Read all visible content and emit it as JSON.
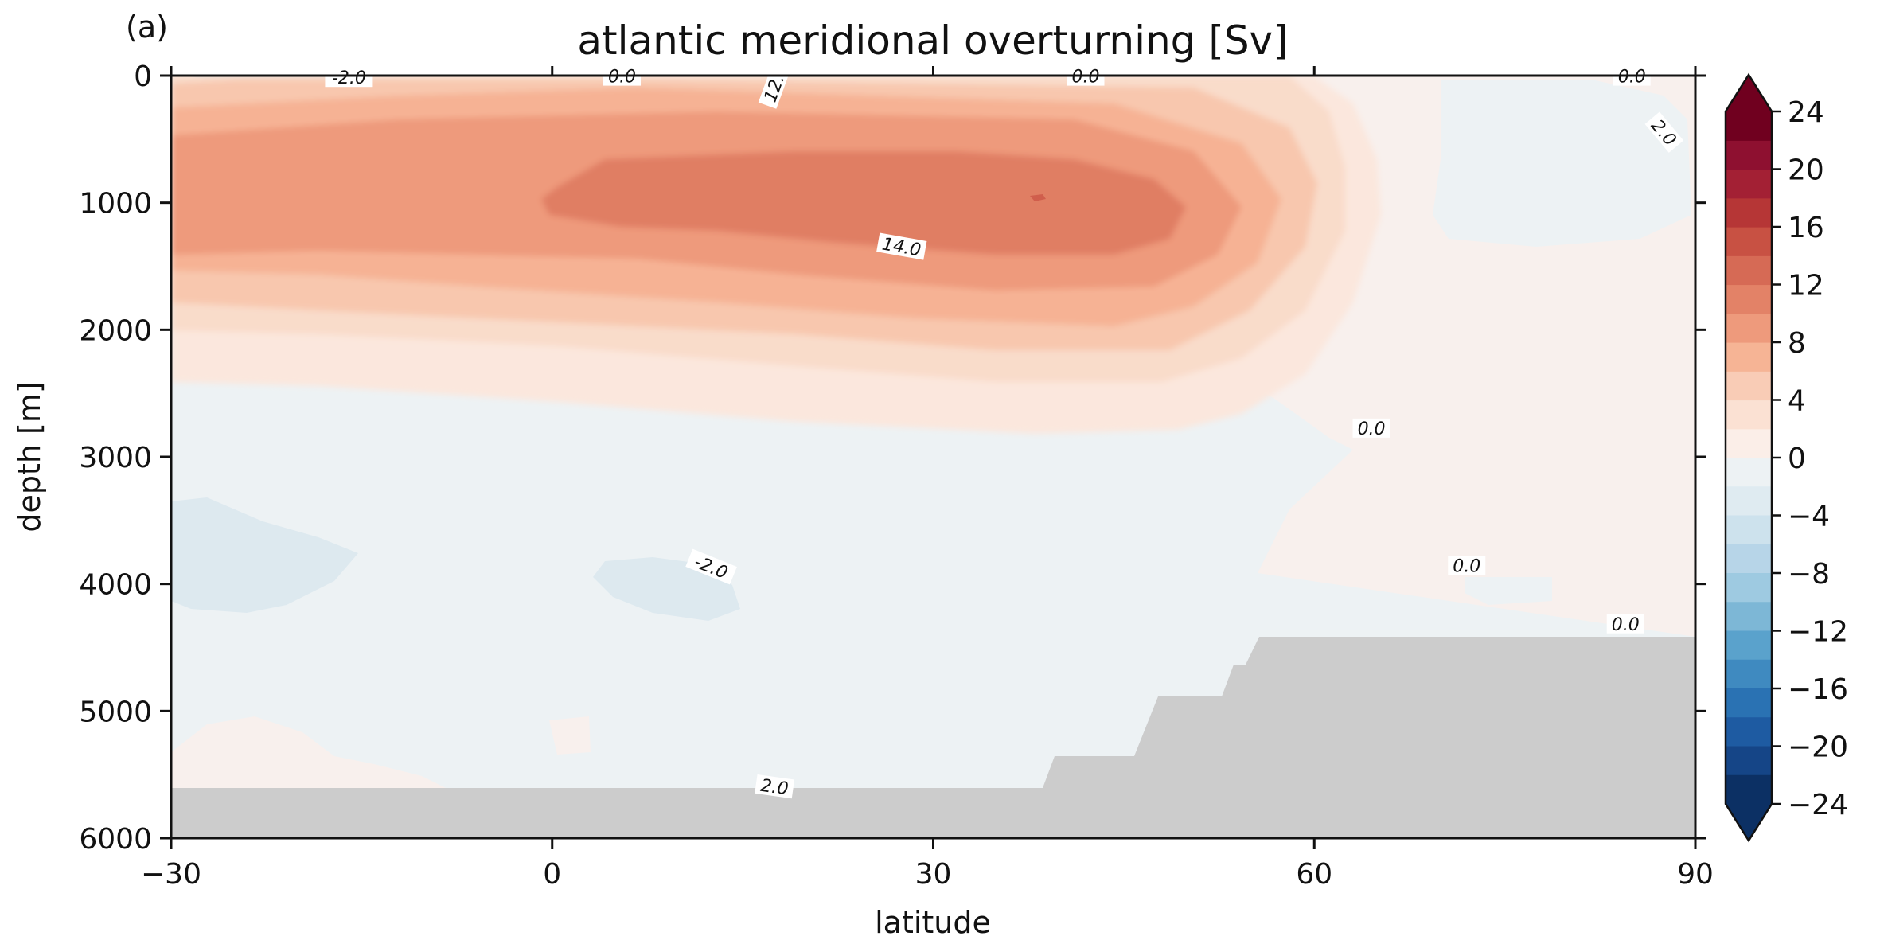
{
  "chart_data": {
    "type": "heatmap",
    "panel_label": "(a)",
    "title": "atlantic meridional overturning [Sv]",
    "xlabel": "latitude",
    "ylabel": "depth [m]",
    "xlim": [
      -30,
      90
    ],
    "ylim": [
      6000,
      0
    ],
    "x_ticks": [
      "−30",
      "0",
      "30",
      "60",
      "90"
    ],
    "y_ticks": [
      "0",
      "1000",
      "2000",
      "3000",
      "4000",
      "5000",
      "6000"
    ],
    "colorbar": {
      "colormap": "RdBu_r",
      "extend": "both",
      "levels_min": -24,
      "levels_max": 24,
      "level_step": 2,
      "tick_labels": [
        "24",
        "20",
        "16",
        "12",
        "8",
        "4",
        "0",
        "−4",
        "−8",
        "−12",
        "−16",
        "−20",
        "−24"
      ],
      "colors_pos": [
        "#fbeee8",
        "#fbe1d3",
        "#f9ccb6",
        "#f6b495",
        "#ee9a7c",
        "#e38267",
        "#d66a55",
        "#c85143",
        "#b63636",
        "#a32034",
        "#8e1030",
        "#70001f"
      ],
      "colors_neg": [
        "#edf2f4",
        "#dfebf1",
        "#cde2ed",
        "#b7d5e8",
        "#9ecae1",
        "#7db7d6",
        "#5aa2cc",
        "#3f8ac0",
        "#2a72b3",
        "#1e5ba2",
        "#154587",
        "#0c3064"
      ]
    },
    "contour_labels": [
      {
        "text": "-2.0",
        "lat": -16,
        "depth": 20,
        "rot": 0
      },
      {
        "text": "0.0",
        "lat": 5.5,
        "depth": 10,
        "rot": 0
      },
      {
        "text": "12.",
        "lat": 17.5,
        "depth": 100,
        "rot": -70
      },
      {
        "text": "0.0",
        "lat": 42,
        "depth": 10,
        "rot": 0
      },
      {
        "text": "0.0",
        "lat": 85,
        "depth": 10,
        "rot": 0
      },
      {
        "text": "2.0",
        "lat": 87.5,
        "depth": 450,
        "rot": 50
      },
      {
        "text": "14.0",
        "lat": 27.5,
        "depth": 1350,
        "rot": 10
      },
      {
        "text": "0.0",
        "lat": 64.5,
        "depth": 2780,
        "rot": 0
      },
      {
        "text": "-2.0",
        "lat": 12.5,
        "depth": 3870,
        "rot": 22
      },
      {
        "text": "0.0",
        "lat": 72,
        "depth": 3860,
        "rot": 0
      },
      {
        "text": "0.0",
        "lat": 84.5,
        "depth": 4320,
        "rot": 0
      },
      {
        "text": "2.0",
        "lat": 17.5,
        "depth": 5600,
        "rot": 8
      }
    ]
  }
}
